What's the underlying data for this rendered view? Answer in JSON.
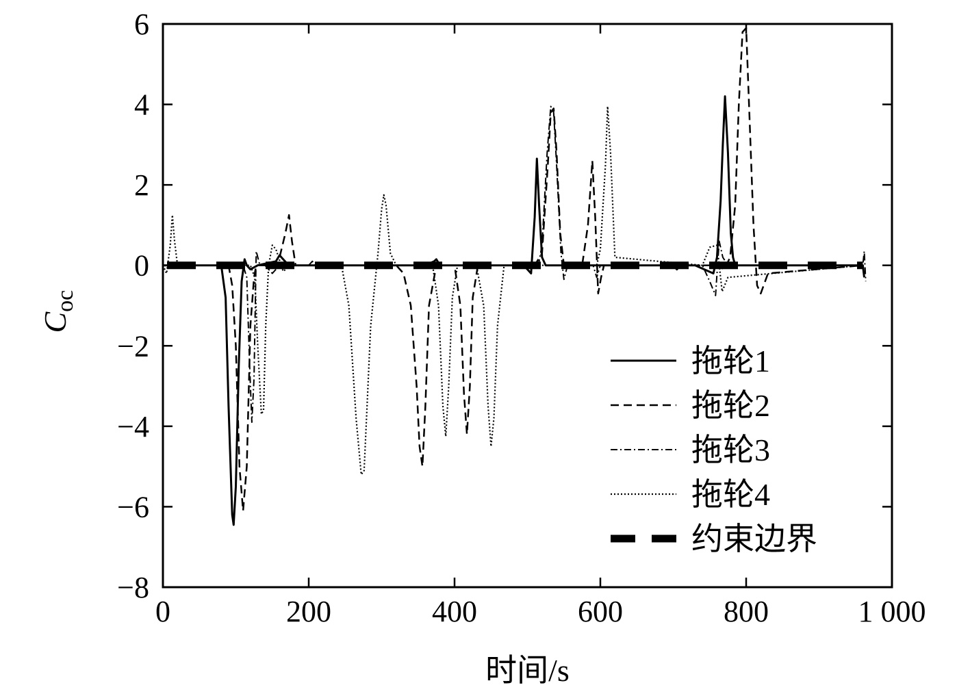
{
  "chart_data": {
    "type": "line",
    "title": "",
    "xlabel": "时间/s",
    "ylabel": "C",
    "ylabel_sub": "oc",
    "xlim": [
      0,
      1000
    ],
    "ylim": [
      -8,
      6
    ],
    "xticks": [
      0,
      200,
      400,
      600,
      800,
      1000
    ],
    "xtick_labels": [
      "0",
      "200",
      "400",
      "600",
      "800",
      "1 000"
    ],
    "yticks": [
      -8,
      -6,
      -4,
      -2,
      0,
      2,
      4,
      6
    ],
    "ytick_labels": [
      "−8",
      "−6",
      "−4",
      "−2",
      "0",
      "2",
      "4",
      "6"
    ],
    "grid": false,
    "legend_position": "lower-right",
    "series": [
      {
        "name": "拖轮1",
        "style": "solid",
        "color": "#000000",
        "x": [
          0,
          80,
          86,
          90,
          95,
          97,
          100,
          104,
          108,
          112,
          115,
          120,
          130,
          155,
          160,
          165,
          170,
          175,
          190,
          360,
          372,
          375,
          380,
          495,
          505,
          510,
          513,
          516,
          520,
          525,
          600,
          700,
          705,
          710,
          730,
          755,
          760,
          765,
          768,
          771,
          775,
          779,
          782,
          785,
          790,
          900,
          960,
          962
        ],
        "y": [
          0,
          0,
          -0.8,
          -3.5,
          -6.2,
          -6.45,
          -5.5,
          -2.5,
          -0.4,
          0.15,
          0,
          -0.1,
          0,
          0.1,
          0.25,
          0.15,
          0.05,
          0,
          0,
          0,
          0.1,
          0.15,
          0,
          0,
          -0.2,
          1.2,
          2.65,
          1.5,
          0.2,
          0,
          0,
          0,
          -0.1,
          0,
          0,
          -0.2,
          0.2,
          1.6,
          3.0,
          4.2,
          2.8,
          0.8,
          0.2,
          0,
          0,
          0,
          0,
          -0.3
        ]
      },
      {
        "name": "拖轮2",
        "style": "dashed",
        "color": "#000000",
        "x": [
          0,
          90,
          95,
          100,
          105,
          110,
          115,
          120,
          125,
          128,
          132,
          150,
          160,
          168,
          173,
          177,
          182,
          190,
          320,
          330,
          340,
          348,
          352,
          356,
          360,
          365,
          375,
          400,
          408,
          413,
          417,
          421,
          425,
          432,
          510,
          520,
          528,
          532,
          536,
          540,
          545,
          550,
          575,
          583,
          589,
          593,
          597,
          601,
          605,
          760,
          770,
          778,
          785,
          790,
          795,
          800,
          805,
          810,
          815,
          820,
          830,
          960
        ],
        "y": [
          0,
          0,
          -0.5,
          -2,
          -5,
          -6.1,
          -5,
          -1.5,
          -0.3,
          0,
          0,
          0,
          0.2,
          0.8,
          1.25,
          0.6,
          0,
          0,
          0,
          -0.2,
          -1,
          -3,
          -4.5,
          -5,
          -3.5,
          -1,
          0,
          0,
          -1,
          -3.2,
          -4.2,
          -3,
          -0.8,
          0,
          0,
          0.3,
          2.5,
          3.8,
          3.9,
          2.8,
          0.8,
          0,
          0,
          1,
          2.6,
          1.2,
          -0.7,
          -0.3,
          0,
          0,
          -0.1,
          0.2,
          1.5,
          4,
          5.8,
          5.9,
          3.5,
          1,
          -0.5,
          -0.7,
          -0.2,
          0
        ]
      },
      {
        "name": "拖轮3",
        "style": "dashdot",
        "color": "#000000",
        "x": [
          0,
          110,
          115,
          119,
          122,
          125,
          128,
          133,
          140,
          150,
          155,
          160,
          165,
          200,
          205,
          210,
          515,
          520,
          527,
          532,
          536,
          540,
          546,
          550,
          555,
          590,
          595,
          600,
          605,
          740,
          750,
          758,
          763,
          768,
          775,
          960,
          962,
          964
        ],
        "y": [
          0,
          0,
          -0.3,
          -2.5,
          -3.9,
          -2.8,
          0.35,
          0,
          0,
          -0.2,
          -0.1,
          0,
          0,
          0,
          0.1,
          0,
          0,
          0.5,
          2.8,
          3.95,
          3.8,
          2.5,
          0.3,
          -0.35,
          0,
          0,
          -0.3,
          0,
          0,
          0,
          -0.4,
          -0.75,
          0.6,
          0.2,
          0,
          0,
          0.35,
          -0.4
        ]
      },
      {
        "name": "拖轮4",
        "style": "dotted",
        "color": "#000000",
        "x": [
          0,
          5,
          10,
          13,
          16,
          20,
          25,
          120,
          126,
          130,
          135,
          138,
          141,
          145,
          150,
          155,
          165,
          175,
          245,
          255,
          265,
          272,
          276,
          280,
          285,
          295,
          300,
          303,
          306,
          312,
          320,
          370,
          378,
          384,
          388,
          392,
          397,
          404,
          430,
          440,
          446,
          450,
          454,
          459,
          468,
          595,
          600,
          607,
          610,
          614,
          620,
          740,
          750,
          760,
          767,
          775,
          960
        ],
        "y": [
          0,
          -0.2,
          0.5,
          1.25,
          0.6,
          0,
          0,
          0,
          -0.3,
          -2,
          -3.7,
          -3.6,
          -1.5,
          0,
          0.5,
          0.4,
          -0.15,
          0,
          0,
          -1,
          -3.8,
          -5.2,
          -5.1,
          -3.5,
          -1.5,
          0.3,
          1.4,
          1.75,
          1.5,
          0.3,
          0,
          0,
          -1,
          -3.5,
          -4.25,
          -3,
          -0.8,
          0,
          0,
          -1,
          -3.5,
          -4.5,
          -3.8,
          -1.5,
          0,
          0,
          0.4,
          2.5,
          3.95,
          2.8,
          0.2,
          0,
          0.45,
          0.5,
          -0.65,
          -0.3,
          0
        ]
      },
      {
        "name": "约束边界",
        "style": "thick-dashed",
        "color": "#000000",
        "x": [
          0,
          960
        ],
        "y": [
          0,
          0
        ]
      }
    ]
  }
}
